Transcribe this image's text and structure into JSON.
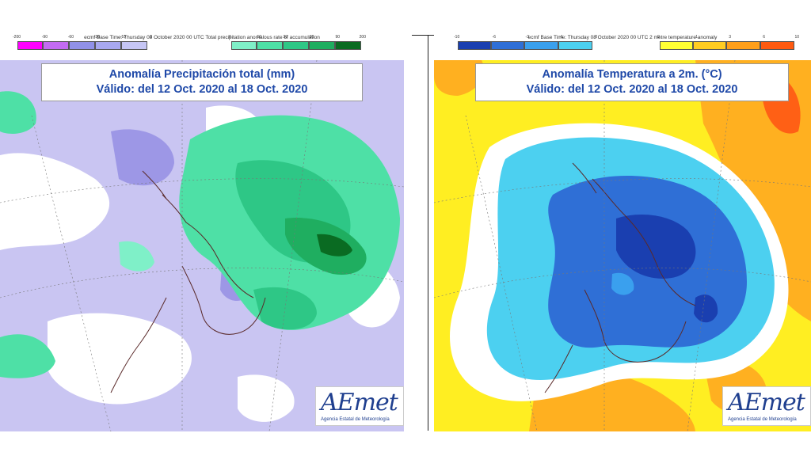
{
  "left": {
    "header": "ecmf Base Time: Thursday 08 October 2020 00 UTC Total precipitation anomalous rate of accumulation",
    "legend_neg": {
      "ticks": [
        "-200",
        "-90",
        "-60",
        "-30",
        "-10",
        "0"
      ],
      "colors": [
        "#ff00ff",
        "#c36bf2",
        "#9191e8",
        "#a8a8ef",
        "#c6c6f5",
        "#e0e0fa"
      ]
    },
    "legend_pos": {
      "ticks": [
        "0",
        "10",
        "30",
        "60",
        "90",
        "200"
      ],
      "colors": [
        "#7ff0c8",
        "#4ee0a6",
        "#2ec786",
        "#1fae60",
        "#138a3c",
        "#0a6b22"
      ]
    },
    "title_line1": "Anomalía Precipitación total (mm)",
    "title_line2": "Válido: del 12 Oct. 2020 al 18 Oct. 2020",
    "logo_name": "AEmet",
    "logo_sub": "Agencia Estatal de Meteorología"
  },
  "right": {
    "header": "ecmf Base Time: Thursday 08 October 2020 00 UTC 2 metre temperature anomaly",
    "legend_neg": {
      "ticks": [
        "-10",
        "-6",
        "-3",
        "-1",
        "0"
      ],
      "colors": [
        "#1a3fb0",
        "#2f6fd6",
        "#3aa0ee",
        "#4cd0f0"
      ]
    },
    "legend_pos": {
      "ticks": [
        "0",
        "1",
        "3",
        "6",
        "10"
      ],
      "colors": [
        "#ffff33",
        "#ffcc22",
        "#ff9f1a",
        "#ff5a10"
      ]
    },
    "title_line1": "Anomalía Temperatura a 2m. (°C)",
    "title_line2": "Válido: del 12 Oct. 2020 al 18 Oct. 2020",
    "logo_name": "AEmet",
    "logo_sub": "Agencia Estatal de Meteorología"
  }
}
